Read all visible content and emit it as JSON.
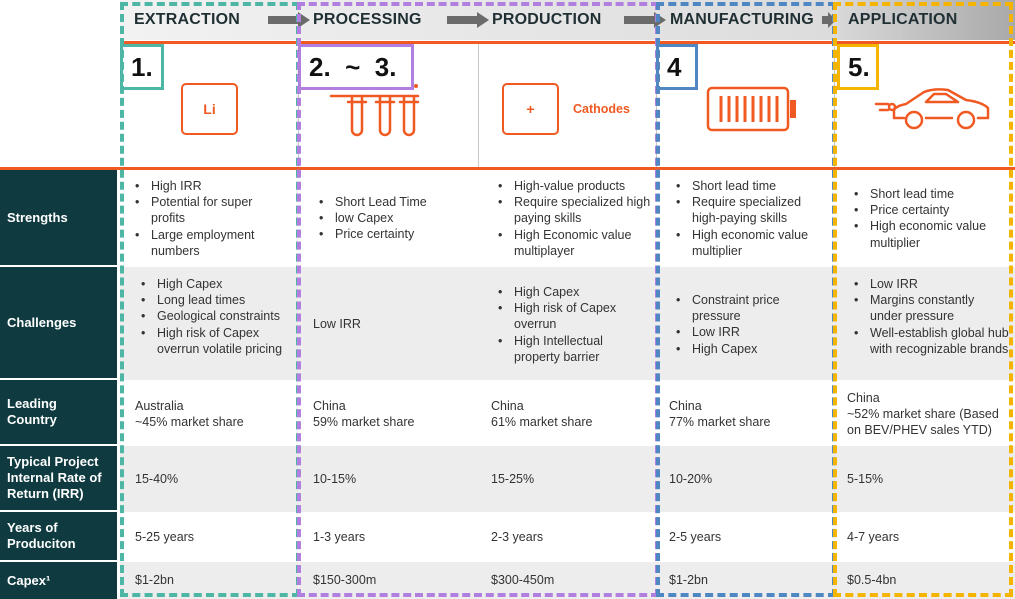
{
  "stages": [
    {
      "label": "EXTRACTION",
      "number": "1."
    },
    {
      "label": "PROCESSING",
      "number": "2.  ~  3."
    },
    {
      "label": "PRODUCTION",
      "number": ""
    },
    {
      "label": "MANUFACTURING",
      "number": "4"
    },
    {
      "label": "APPLICATION",
      "number": "5."
    }
  ],
  "icons": {
    "extraction": {
      "name": "lithium-element-icon",
      "text": "Li"
    },
    "processing": {
      "name": "test-tubes-icon"
    },
    "production": {
      "name": "cathode-cell-icon",
      "text": "+",
      "caption": "Cathodes"
    },
    "manufacturing": {
      "name": "battery-icon"
    },
    "application": {
      "name": "electric-car-icon"
    }
  },
  "rows": [
    {
      "label": "Strengths",
      "cells": [
        [
          "High IRR",
          "Potential for super profits",
          "Large employment numbers"
        ],
        [
          "Short Lead Time",
          "low Capex",
          "Price certainty"
        ],
        [
          "High-value products",
          "Require specialized high paying skills",
          "High Economic value multiplayer"
        ],
        [
          "Short lead time",
          "Require specialized high-paying skills",
          "High economic value multiplier"
        ],
        [
          "Short lead time",
          "Price certainty",
          "High economic value multiplier"
        ]
      ]
    },
    {
      "label": "Challenges",
      "cells": [
        [
          "High Capex",
          "Long lead times",
          "Geological constraints",
          "High risk of Capex overrun volatile pricing"
        ],
        "Low IRR",
        [
          "High Capex",
          "High risk of Capex overrun",
          "High Intellectual property barrier"
        ],
        [
          "Constraint price pressure",
          "Low IRR",
          "High Capex"
        ],
        [
          "Low IRR",
          "Margins constantly under pressure",
          "Well-establish global hub with recognizable brands"
        ]
      ]
    },
    {
      "label": "Leading Country",
      "cells": [
        [
          "Australia",
          "~45% market share"
        ],
        [
          "China",
          "59% market share"
        ],
        [
          "China",
          "61% market share"
        ],
        [
          "China",
          "77% market share"
        ],
        [
          "China",
          "~52% market share (Based on BEV/PHEV sales YTD)"
        ]
      ]
    },
    {
      "label": "Typical Project Internal Rate of Return (IRR)",
      "cells": [
        "15-40%",
        "10-15%",
        "15-25%",
        "10-20%",
        "5-15%"
      ]
    },
    {
      "label": "Years of Produciton",
      "cells": [
        "5-25 years",
        "1-3 years",
        "2-3 years",
        "2-5 years",
        "4-7 years"
      ]
    },
    {
      "label": "Capex¹",
      "cells": [
        "$1-2bn",
        "$150-300m",
        "$300-450m",
        "$1-2bn",
        "$0.5-4bn"
      ]
    }
  ],
  "colors": {
    "accent_orange": "#f05a22",
    "row_label_bg": "#0f3b40",
    "frame_extraction": "#4db6a5",
    "frame_processing": "#b07fe0",
    "frame_manufacturing": "#4f87c2",
    "frame_application": "#f5b400"
  }
}
